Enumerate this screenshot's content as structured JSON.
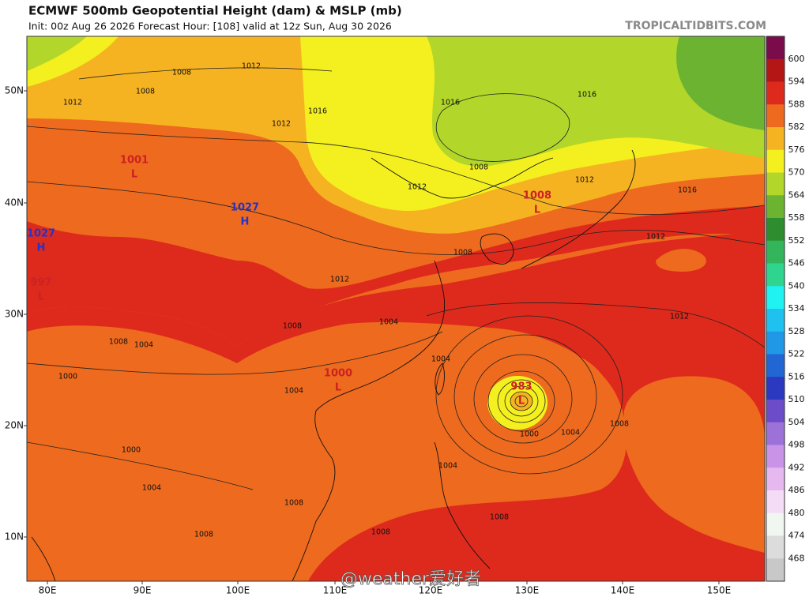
{
  "header": {
    "title": "ECMWF 500mb Geopotential Height (dam) & MSLP (mb)",
    "subtitle": "Init: 00z Aug 26 2026   Forecast Hour: [108]   valid at 12z Sun, Aug 30 2026",
    "site": "TROPICALTIDBITS.COM"
  },
  "legend": {
    "labels": [
      600,
      594,
      588,
      582,
      576,
      570,
      564,
      558,
      552,
      546,
      540,
      534,
      528,
      522,
      516,
      510,
      504,
      498,
      492,
      486,
      480,
      474,
      468
    ],
    "colors": [
      "#7a0c4c",
      "#b41616",
      "#de2a1c",
      "#ee6a1e",
      "#f6b321",
      "#f4f01f",
      "#b2d62a",
      "#6cb331",
      "#2e8e2f",
      "#33b55c",
      "#2fd58f",
      "#20f2f2",
      "#1fc2ef",
      "#2098e6",
      "#2266d4",
      "#2b38c0",
      "#6c4cc8",
      "#9c72d9",
      "#c993e8",
      "#e6b8f0",
      "#f4dcf6",
      "#f0f6f0",
      "#dcdcdc",
      "#c8c8c8"
    ]
  },
  "axes": {
    "lat": [
      "50N",
      "40N",
      "30N",
      "20N",
      "10N"
    ],
    "lon": [
      "80E",
      "90E",
      "100E",
      "110E",
      "120E",
      "130E",
      "140E",
      "150E"
    ]
  },
  "map": {
    "centers": [
      {
        "value": "1027",
        "letter": "H",
        "color": "#2233cc"
      },
      {
        "value": "1027",
        "letter": "H",
        "color": "#2233cc"
      },
      {
        "value": "1001",
        "letter": "L",
        "color": "#cc2222"
      },
      {
        "value": "997",
        "letter": "L",
        "color": "#cc2222"
      },
      {
        "value": "1008",
        "letter": "L",
        "color": "#cc2222"
      },
      {
        "value": "1000",
        "letter": "L",
        "color": "#cc2222"
      },
      {
        "value": "983",
        "letter": "L",
        "color": "#cc2222"
      }
    ],
    "isobar_labels": [
      "1008",
      "1012",
      "1012",
      "1008",
      "1016",
      "1012",
      "1016",
      "1016",
      "1008",
      "1012",
      "1012",
      "1016",
      "1012",
      "1008",
      "1012",
      "1012",
      "1008",
      "1004",
      "1004",
      "1004",
      "1000",
      "1000",
      "1004",
      "1008",
      "1008",
      "1004",
      "1008",
      "1008",
      "1000",
      "1004",
      "1008",
      "1004",
      "1008"
    ]
  },
  "watermark": "@weather爱好者"
}
